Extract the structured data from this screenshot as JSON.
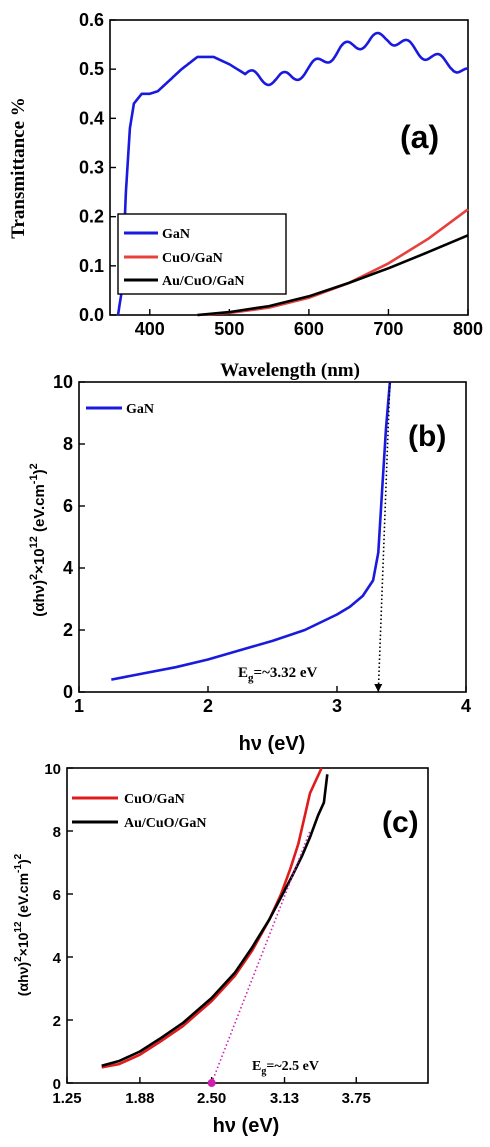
{
  "chart_data": [
    {
      "panel": "(a)",
      "type": "line",
      "xlabel": "Wavelength (nm)",
      "ylabel": "Transmittance %",
      "xlim": [
        350,
        800
      ],
      "ylim": [
        0,
        0.6
      ],
      "x_ticks": [
        "400",
        "500",
        "600",
        "700",
        "800"
      ],
      "y_ticks": [
        "0.0",
        "0.1",
        "0.2",
        "0.3",
        "0.4",
        "0.5",
        "0.6"
      ],
      "legend_position": "bottom-left",
      "series": [
        {
          "name": "GaN",
          "color": "#1a1adf",
          "x": [
            360,
            365,
            370,
            375,
            380,
            390,
            400,
            410,
            420,
            440,
            460,
            480,
            500,
            520,
            540,
            560,
            580,
            600,
            620,
            640,
            660,
            680,
            700,
            720,
            740,
            760,
            780,
            800
          ],
          "y": [
            0.0,
            0.05,
            0.25,
            0.38,
            0.43,
            0.45,
            0.45,
            0.455,
            0.47,
            0.5,
            0.525,
            0.525,
            0.51,
            0.49,
            0.48,
            0.48,
            0.485,
            0.5,
            0.52,
            0.54,
            0.55,
            0.56,
            0.565,
            0.55,
            0.535,
            0.52,
            0.51,
            0.49
          ]
        },
        {
          "name": "CuO/GaN",
          "color": "#e8403a",
          "x": [
            460,
            500,
            550,
            600,
            650,
            700,
            750,
            800
          ],
          "y": [
            0.0,
            0.004,
            0.015,
            0.035,
            0.065,
            0.105,
            0.155,
            0.215
          ]
        },
        {
          "name": "Au/CuO/GaN",
          "color": "#000000",
          "x": [
            460,
            500,
            550,
            600,
            650,
            700,
            750,
            800
          ],
          "y": [
            0.0,
            0.006,
            0.018,
            0.038,
            0.065,
            0.095,
            0.128,
            0.162
          ]
        }
      ]
    },
    {
      "panel": "(b)",
      "type": "line",
      "xlabel": "hν (eV)",
      "ylabel_main": "(αhν)",
      "ylabel_sup1": "2",
      "ylabel_times": "×10",
      "ylabel_sup2": "12",
      "ylabel_unit": " (eV.cm",
      "ylabel_sup3": "-1",
      "ylabel_close": ")",
      "ylabel_sup4": "2",
      "xlim": [
        1,
        4
      ],
      "ylim": [
        0,
        10
      ],
      "x_ticks": [
        "1",
        "2",
        "3",
        "4"
      ],
      "y_ticks": [
        "0",
        "2",
        "4",
        "6",
        "8",
        "10"
      ],
      "annotation_main": "E",
      "annotation_sub": "g",
      "annotation_rest": "=~3.32 eV",
      "legend_position": "top-left",
      "series": [
        {
          "name": "GaN",
          "color": "#1a1adf",
          "x": [
            1.25,
            1.5,
            1.75,
            2.0,
            2.25,
            2.5,
            2.75,
            3.0,
            3.1,
            3.2,
            3.28,
            3.32,
            3.35,
            3.38,
            3.41
          ],
          "y": [
            0.4,
            0.6,
            0.8,
            1.05,
            1.35,
            1.65,
            2.0,
            2.5,
            2.75,
            3.1,
            3.6,
            4.5,
            6.5,
            8.5,
            10.0
          ]
        },
        {
          "name": "",
          "color": "#000000",
          "style": "dotted",
          "x": [
            3.32,
            3.41
          ],
          "y": [
            0.0,
            10.0
          ]
        }
      ]
    },
    {
      "panel": "(c)",
      "type": "line",
      "xlabel": "hν (eV)",
      "ylabel_main": "(αhν)",
      "ylabel_sup1": "2",
      "ylabel_times": "×10",
      "ylabel_sup2": "12",
      "ylabel_unit": "  (eV.cm",
      "ylabel_sup3": "-1",
      "ylabel_close": ")",
      "ylabel_sup4": "2",
      "xlim": [
        1.25,
        4.37
      ],
      "ylim": [
        0,
        10
      ],
      "x_ticks": [
        "1.25",
        "1.88",
        "2.50",
        "3.13",
        "3.75"
      ],
      "x_tick_values": [
        1.25,
        1.88,
        2.5,
        3.13,
        3.75
      ],
      "y_ticks": [
        "0",
        "2",
        "4",
        "6",
        "8",
        "10"
      ],
      "annotation_main": "E",
      "annotation_sub": "g",
      "annotation_rest": "=~2.5 eV",
      "legend_position": "top-left",
      "series": [
        {
          "name": "CuO/GaN",
          "color": "#e01b1b",
          "x": [
            1.55,
            1.7,
            1.88,
            2.05,
            2.25,
            2.5,
            2.7,
            2.85,
            3.0,
            3.1,
            3.18,
            3.25,
            3.3,
            3.35,
            3.4,
            3.45
          ],
          "y": [
            0.5,
            0.6,
            0.9,
            1.3,
            1.8,
            2.6,
            3.4,
            4.2,
            5.2,
            6.0,
            6.8,
            7.6,
            8.4,
            9.2,
            9.6,
            10.0
          ]
        },
        {
          "name": "Au/CuO/GaN",
          "color": "#000000",
          "x": [
            1.55,
            1.7,
            1.88,
            2.05,
            2.25,
            2.5,
            2.7,
            2.85,
            3.0,
            3.1,
            3.2,
            3.28,
            3.35,
            3.42,
            3.47,
            3.5
          ],
          "y": [
            0.55,
            0.7,
            1.0,
            1.4,
            1.9,
            2.7,
            3.5,
            4.3,
            5.2,
            5.9,
            6.6,
            7.2,
            7.8,
            8.5,
            8.9,
            9.8
          ]
        },
        {
          "name": "",
          "color": "#d01fb0",
          "style": "dotted",
          "x": [
            2.5,
            3.35
          ],
          "y": [
            0.0,
            8.0
          ]
        }
      ]
    }
  ]
}
